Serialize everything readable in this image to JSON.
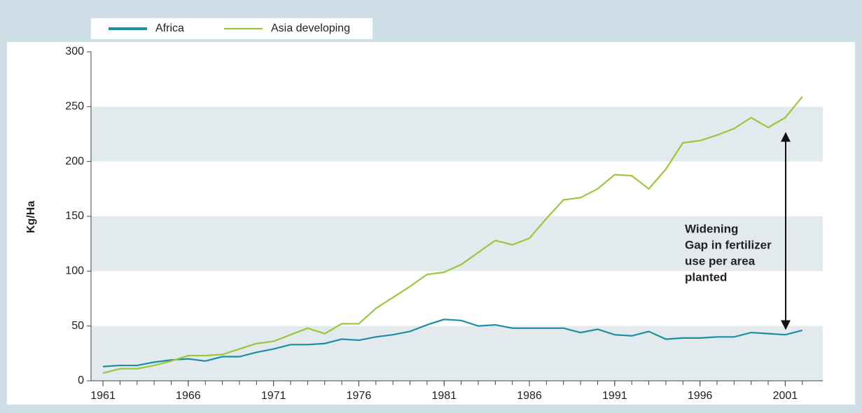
{
  "chart_data": {
    "type": "line",
    "y_label": "Kg/Ha",
    "annotation": [
      "Widening",
      "Gap in fertilizer",
      "use per area",
      "planted"
    ],
    "x": [
      1961,
      1962,
      1963,
      1964,
      1965,
      1966,
      1967,
      1968,
      1969,
      1970,
      1971,
      1972,
      1973,
      1974,
      1975,
      1976,
      1977,
      1978,
      1979,
      1980,
      1981,
      1982,
      1983,
      1984,
      1985,
      1986,
      1987,
      1988,
      1989,
      1990,
      1991,
      1992,
      1993,
      1994,
      1995,
      1996,
      1997,
      1998,
      1999,
      2000,
      2001,
      2002
    ],
    "series": [
      {
        "name": "Africa",
        "color": "#1a8ea2",
        "values": [
          13,
          14,
          14,
          17,
          19,
          20,
          18,
          22,
          22,
          26,
          29,
          33,
          33,
          34,
          38,
          37,
          40,
          42,
          45,
          51,
          56,
          55,
          50,
          51,
          48,
          48,
          48,
          48,
          44,
          47,
          42,
          41,
          45,
          38,
          39,
          39,
          40,
          40,
          44,
          43,
          42,
          46
        ]
      },
      {
        "name": "Asia developing",
        "color": "#9cc63b",
        "values": [
          7,
          11,
          11,
          14,
          18,
          23,
          23,
          24,
          29,
          34,
          36,
          42,
          48,
          43,
          52,
          52,
          66,
          76,
          86,
          97,
          99,
          106,
          117,
          128,
          124,
          130,
          148,
          165,
          167,
          175,
          188,
          187,
          175,
          193,
          217,
          219,
          224,
          230,
          240,
          231,
          240,
          259
        ]
      }
    ],
    "xlim": [
      1960.3,
      2003.2
    ],
    "xticks": [
      1961,
      1966,
      1971,
      1976,
      1981,
      1986,
      1991,
      1996,
      2001
    ],
    "xticks_minor": [
      1961,
      1962,
      1963,
      1964,
      1965,
      1966,
      1967,
      1968,
      1969,
      1970,
      1971,
      1972,
      1973,
      1974,
      1975,
      1976,
      1977,
      1978,
      1979,
      1980,
      1981,
      1982,
      1983,
      1984,
      1985,
      1986,
      1987,
      1988,
      1989,
      1990,
      1991,
      1992,
      1993,
      1994,
      1995,
      1996,
      1997,
      1998,
      1999,
      2000,
      2001,
      2002
    ],
    "ylim": [
      0,
      300
    ],
    "yticks": [
      0,
      50,
      100,
      150,
      200,
      250,
      300
    ],
    "bands": true,
    "band_color": "#e3eaee"
  }
}
